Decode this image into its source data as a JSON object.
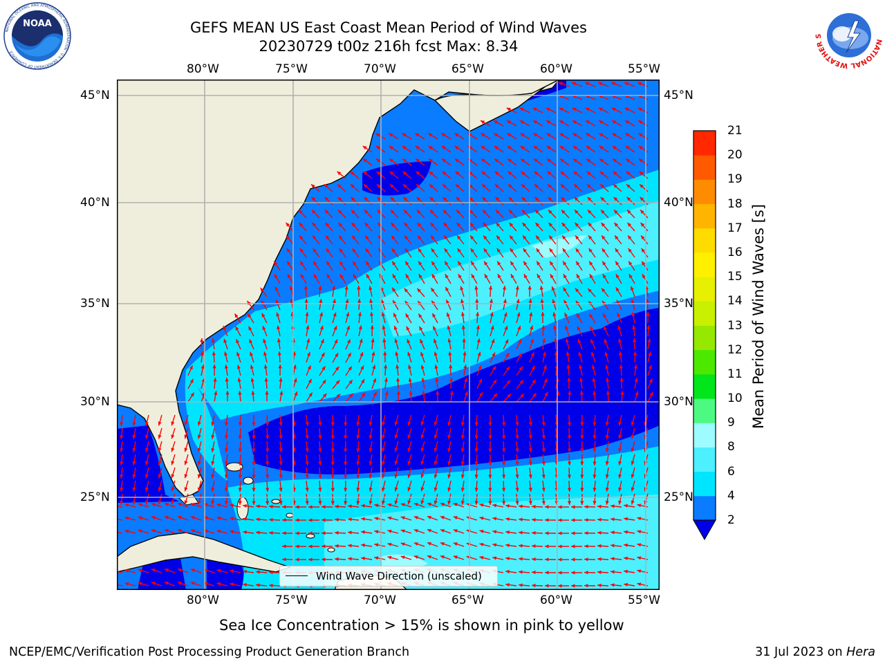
{
  "header": {
    "title_line1": "GEFS MEAN US East Coast Mean Period of Wind Waves",
    "title_line2": "20230729 t00z 216h fcst   Max: 8.34"
  },
  "logos": {
    "left": {
      "name": "noaa-logo",
      "text": "NOAA",
      "ring_text": "NATIONAL OCEANIC AND ATMOSPHERIC ADMINISTRATION · U.S. DEPARTMENT OF COMMERCE"
    },
    "right": {
      "name": "nws-logo",
      "ring_text": "NATIONAL WEATHER SERVICE"
    }
  },
  "map": {
    "lon_labels": [
      "80°W",
      "75°W",
      "70°W",
      "65°W",
      "60°W",
      "55°W"
    ],
    "lat_labels": [
      "45°N",
      "40°N",
      "35°N",
      "30°N",
      "25°N"
    ],
    "colors": {
      "land": "#efeedc",
      "bin_2_4": "#0a7cff",
      "below_2": "#0000e8",
      "bin_4_6": "#00e5ff",
      "bin_6_8": "#4cf0ff",
      "bin_8_9": "#9cfcff",
      "arrow": "#ff0000",
      "grid": "#b0b0b0"
    },
    "legend_label": "Wind Wave Direction (unscaled)"
  },
  "colorbar": {
    "ticks": [
      "2",
      "4",
      "6",
      "8",
      "9",
      "10",
      "11",
      "12",
      "13",
      "14",
      "15",
      "16",
      "17",
      "18",
      "19",
      "20",
      "21"
    ],
    "label": "Mean Period of Wind Waves [s]",
    "colors": [
      "#0a7cff",
      "#00e5ff",
      "#4cf0ff",
      "#9cfcff",
      "#4cfa82",
      "#00e61a",
      "#4ce800",
      "#96e800",
      "#c8f000",
      "#e6f000",
      "#fff000",
      "#ffdc00",
      "#ffb400",
      "#ff8c00",
      "#ff5a00",
      "#ff2800"
    ],
    "under_color": "#0000e8"
  },
  "notes": {
    "sea_ice": "Sea Ice Concentration > 15% is shown in pink to yellow"
  },
  "footer": {
    "left": "NCEP/EMC/Verification Post Processing Product Generation Branch",
    "right_prefix": "31 Jul 2023 on ",
    "right_italic": "Hera"
  }
}
